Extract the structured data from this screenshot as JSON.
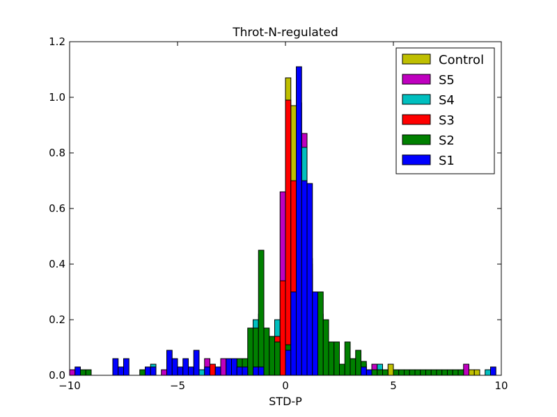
{
  "chart_data": {
    "type": "histogram",
    "histtype": "stepfilled",
    "title": "Throt-N-regulated",
    "xlabel": "STD-P",
    "ylabel": "",
    "xlim": [
      -10,
      10
    ],
    "ylim": [
      0,
      1.2
    ],
    "bin_width": 0.25,
    "xticks": [
      -10,
      -5,
      0,
      5,
      10
    ],
    "xtick_labels": [
      "−10",
      "−5",
      "0",
      "5",
      "10"
    ],
    "yticks": [
      0,
      0.2,
      0.4,
      0.6,
      0.8,
      1.0,
      1.2
    ],
    "ytick_labels": [
      "0.0",
      "0.2",
      "0.4",
      "0.6",
      "0.8",
      "1.0",
      "1.2"
    ],
    "legend_position": "top-right",
    "series": [
      {
        "name": "Control",
        "color": "#bfbf00",
        "bins": [
          [
            -0.5,
            0.15
          ],
          [
            -0.25,
            0.15
          ],
          [
            0,
            1.07
          ],
          [
            0.25,
            0.97
          ],
          [
            0.5,
            0.82
          ],
          [
            0.75,
            0.7
          ],
          [
            1.0,
            0.42
          ],
          [
            1.25,
            0.3
          ],
          [
            1.5,
            0.2
          ],
          [
            1.75,
            0.15
          ],
          [
            4.5,
            0.02
          ],
          [
            4.75,
            0.04
          ],
          [
            6.5,
            0.02
          ],
          [
            7.25,
            0.02
          ],
          [
            8.5,
            0.02
          ],
          [
            8.75,
            0.02
          ]
        ]
      },
      {
        "name": "S5",
        "color": "#bf00bf",
        "bins": [
          [
            -10.0,
            0.02
          ],
          [
            -5.75,
            0.02
          ],
          [
            -3.75,
            0.06
          ],
          [
            -3.5,
            0.04
          ],
          [
            -3.0,
            0.06
          ],
          [
            -0.5,
            0.1
          ],
          [
            -0.25,
            0.66
          ],
          [
            0,
            0.6
          ],
          [
            0.25,
            0.6
          ],
          [
            0.5,
            0.72
          ],
          [
            0.75,
            0.87
          ],
          [
            1.0,
            0.4
          ],
          [
            1.25,
            0.28
          ],
          [
            1.5,
            0.22
          ],
          [
            3.5,
            0.04
          ],
          [
            4.0,
            0.04
          ],
          [
            4.25,
            0.04
          ],
          [
            6.75,
            0.02
          ],
          [
            8.0,
            0.02
          ],
          [
            8.25,
            0.04
          ]
        ]
      },
      {
        "name": "S4",
        "color": "#00bfbf",
        "bins": [
          [
            -6.25,
            0.04
          ],
          [
            -4.0,
            0.02
          ],
          [
            -1.5,
            0.2
          ],
          [
            -1.25,
            0.22
          ],
          [
            -1.0,
            0.12
          ],
          [
            -0.5,
            0.2
          ],
          [
            0.5,
            0.98
          ],
          [
            0.75,
            0.82
          ],
          [
            3.25,
            0.06
          ],
          [
            4.25,
            0.04
          ],
          [
            4.5,
            0.02
          ],
          [
            6.75,
            0.02
          ],
          [
            7.0,
            0.02
          ],
          [
            7.75,
            0.02
          ],
          [
            9.25,
            0.02
          ]
        ]
      },
      {
        "name": "S3",
        "color": "#ff0000",
        "bins": [
          [
            -3.5,
            0.04
          ],
          [
            -2.0,
            0.06
          ],
          [
            -0.5,
            0.14
          ],
          [
            -0.25,
            0.34
          ],
          [
            0,
            0.99
          ],
          [
            0.25,
            0.7
          ],
          [
            0.5,
            0.6
          ],
          [
            0.75,
            0.55
          ],
          [
            1.0,
            0.36
          ],
          [
            1.25,
            0.3
          ]
        ]
      },
      {
        "name": "S2",
        "color": "#008000",
        "bins": [
          [
            -9.5,
            0.02
          ],
          [
            -9.25,
            0.02
          ],
          [
            -6.75,
            0.02
          ],
          [
            -3.25,
            0.02
          ],
          [
            -2.25,
            0.06
          ],
          [
            -2.0,
            0.06
          ],
          [
            -1.75,
            0.17
          ],
          [
            -1.5,
            0.17
          ],
          [
            -1.25,
            0.45
          ],
          [
            -1.0,
            0.17
          ],
          [
            -0.75,
            0.14
          ],
          [
            -0.5,
            0.12
          ],
          [
            0,
            0.11
          ],
          [
            0.25,
            0.25
          ],
          [
            0.5,
            0.3
          ],
          [
            0.75,
            0.3
          ],
          [
            1.0,
            0.38
          ],
          [
            1.25,
            0.27
          ],
          [
            1.5,
            0.3
          ],
          [
            1.75,
            0.2
          ],
          [
            2.0,
            0.12
          ],
          [
            2.25,
            0.12
          ],
          [
            2.5,
            0.04
          ],
          [
            2.75,
            0.12
          ],
          [
            3.0,
            0.06
          ],
          [
            3.25,
            0.09
          ],
          [
            3.5,
            0.05
          ],
          [
            3.75,
            0.02
          ],
          [
            4.0,
            0.02
          ],
          [
            4.25,
            0.02
          ],
          [
            4.5,
            0.02
          ],
          [
            5.0,
            0.02
          ],
          [
            5.25,
            0.02
          ],
          [
            5.5,
            0.02
          ],
          [
            5.75,
            0.02
          ],
          [
            6.0,
            0.02
          ],
          [
            6.25,
            0.02
          ],
          [
            6.5,
            0.02
          ],
          [
            6.75,
            0.02
          ],
          [
            7.0,
            0.02
          ],
          [
            7.25,
            0.02
          ],
          [
            7.5,
            0.02
          ],
          [
            7.75,
            0.02
          ],
          [
            8.0,
            0.02
          ]
        ]
      },
      {
        "name": "S1",
        "color": "#0000ff",
        "bins": [
          [
            -9.75,
            0.03
          ],
          [
            -8.0,
            0.06
          ],
          [
            -7.75,
            0.03
          ],
          [
            -7.5,
            0.06
          ],
          [
            -6.5,
            0.03
          ],
          [
            -6.25,
            0.03
          ],
          [
            -5.5,
            0.09
          ],
          [
            -5.25,
            0.06
          ],
          [
            -5.0,
            0.03
          ],
          [
            -4.75,
            0.06
          ],
          [
            -4.5,
            0.03
          ],
          [
            -4.25,
            0.09
          ],
          [
            -3.75,
            0.03
          ],
          [
            -3.25,
            0.03
          ],
          [
            -2.75,
            0.06
          ],
          [
            -2.5,
            0.06
          ],
          [
            -2.25,
            0.03
          ],
          [
            -2.0,
            0.03
          ],
          [
            -1.5,
            0.03
          ],
          [
            -1.25,
            0.03
          ],
          [
            0,
            0.09
          ],
          [
            0.25,
            0.3
          ],
          [
            0.5,
            1.11
          ],
          [
            0.75,
            0.7
          ],
          [
            1.0,
            0.69
          ],
          [
            1.25,
            0.3
          ],
          [
            3.75,
            0.02
          ],
          [
            3.5,
            0.03
          ],
          [
            9.5,
            0.03
          ]
        ]
      }
    ]
  }
}
